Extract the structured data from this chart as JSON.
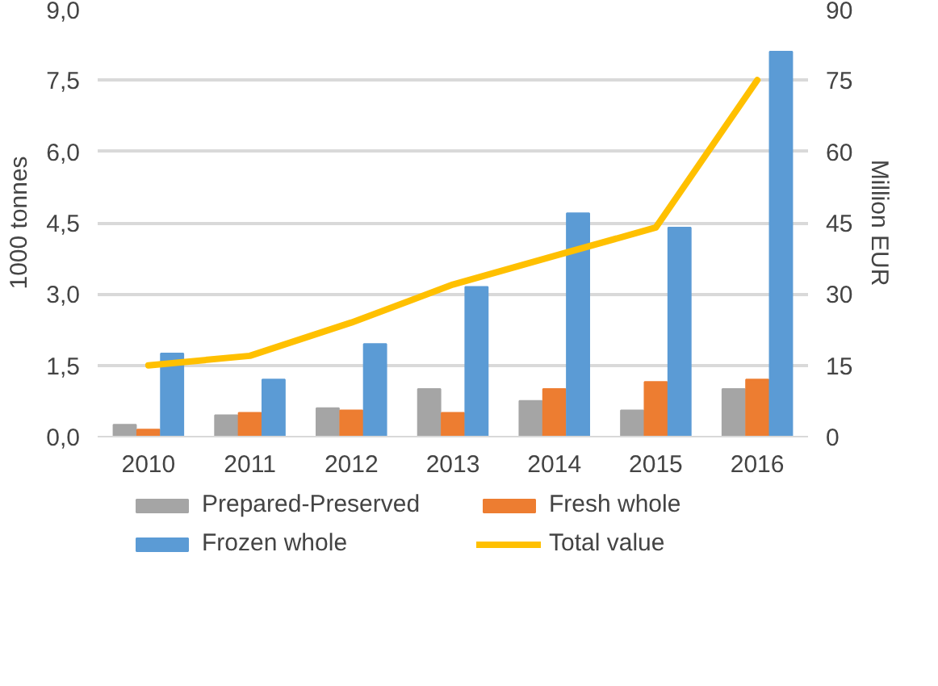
{
  "chart_data": {
    "type": "bar",
    "categories": [
      "2010",
      "2011",
      "2012",
      "2013",
      "2014",
      "2015",
      "2016"
    ],
    "ylabel": "1000 tonnes",
    "y2label": "Million EUR",
    "ylim": [
      0,
      9
    ],
    "yticks": [
      {
        "value": 0,
        "label": "0,0"
      },
      {
        "value": 1.5,
        "label": "1,5"
      },
      {
        "value": 3,
        "label": "3,0"
      },
      {
        "value": 4.5,
        "label": "4,5"
      },
      {
        "value": 6,
        "label": "6,0"
      },
      {
        "value": 7.5,
        "label": "7,5"
      },
      {
        "value": 9,
        "label": "9,0"
      }
    ],
    "y2lim": [
      0,
      90
    ],
    "y2ticks": [
      0,
      15,
      30,
      45,
      60,
      75,
      90
    ],
    "grid": "y",
    "legend": "bottom",
    "series": [
      {
        "name": "Prepared-Preserved",
        "color": "#a5a5a5",
        "values": [
          0.25,
          0.45,
          0.6,
          1.0,
          0.75,
          0.55,
          1.0
        ]
      },
      {
        "name": "Fresh whole",
        "color": "#ed7d31",
        "values": [
          0.15,
          0.5,
          0.55,
          0.5,
          1.0,
          1.15,
          1.2
        ]
      },
      {
        "name": "Frozen whole",
        "color": "#5b9bd5",
        "values": [
          1.75,
          1.2,
          1.95,
          3.15,
          4.7,
          4.4,
          8.1
        ]
      },
      {
        "name": "Total value",
        "color": "#ffc000",
        "type": "line",
        "axis": "y2",
        "values": [
          15,
          17,
          24,
          32,
          38,
          44,
          75
        ]
      }
    ]
  }
}
